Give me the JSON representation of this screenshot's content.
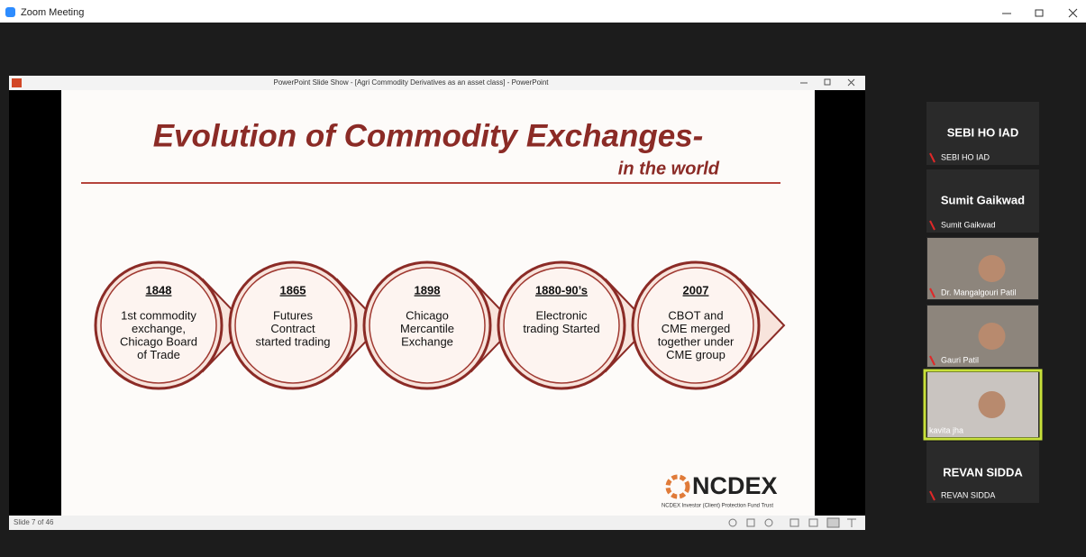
{
  "app": {
    "title": "Zoom Meeting"
  },
  "powerpoint": {
    "title": "PowerPoint Slide Show - [Agri Commodity Derivatives as an asset class] - PowerPoint",
    "status": "Slide 7 of 46"
  },
  "slide": {
    "title": "Evolution of Commodity Exchanges-",
    "subtitle": "in the world",
    "timeline": [
      {
        "year": "1848",
        "lines": [
          "1st commodity",
          "exchange,",
          "Chicago Board",
          "of Trade"
        ]
      },
      {
        "year": "1865",
        "lines": [
          "Futures",
          "Contract",
          "started  trading"
        ]
      },
      {
        "year": "1898",
        "lines": [
          "Chicago",
          "Mercantile",
          "Exchange"
        ]
      },
      {
        "year": "1880-90’s",
        "lines": [
          "Electronic",
          "trading Started"
        ]
      },
      {
        "year": "2007",
        "lines": [
          "CBOT and",
          "CME  merged",
          "together under",
          "CME group"
        ]
      }
    ],
    "logo": {
      "name": "NCDEX",
      "tagline": "NCDEX Investor (Client) Protection Fund Trust"
    }
  },
  "participants": [
    {
      "heading": "SEBI HO IAD",
      "name": "SEBI HO IAD"
    },
    {
      "heading": "Sumit Gaikwad",
      "name": "Sumit Gaikwad"
    },
    {
      "name": "Dr. Mangalgouri Patil"
    },
    {
      "name": "Gauri Patil"
    },
    {
      "name": "kavita jha"
    },
    {
      "heading": "REVAN SIDDA",
      "name": "REVAN SIDDA"
    }
  ]
}
